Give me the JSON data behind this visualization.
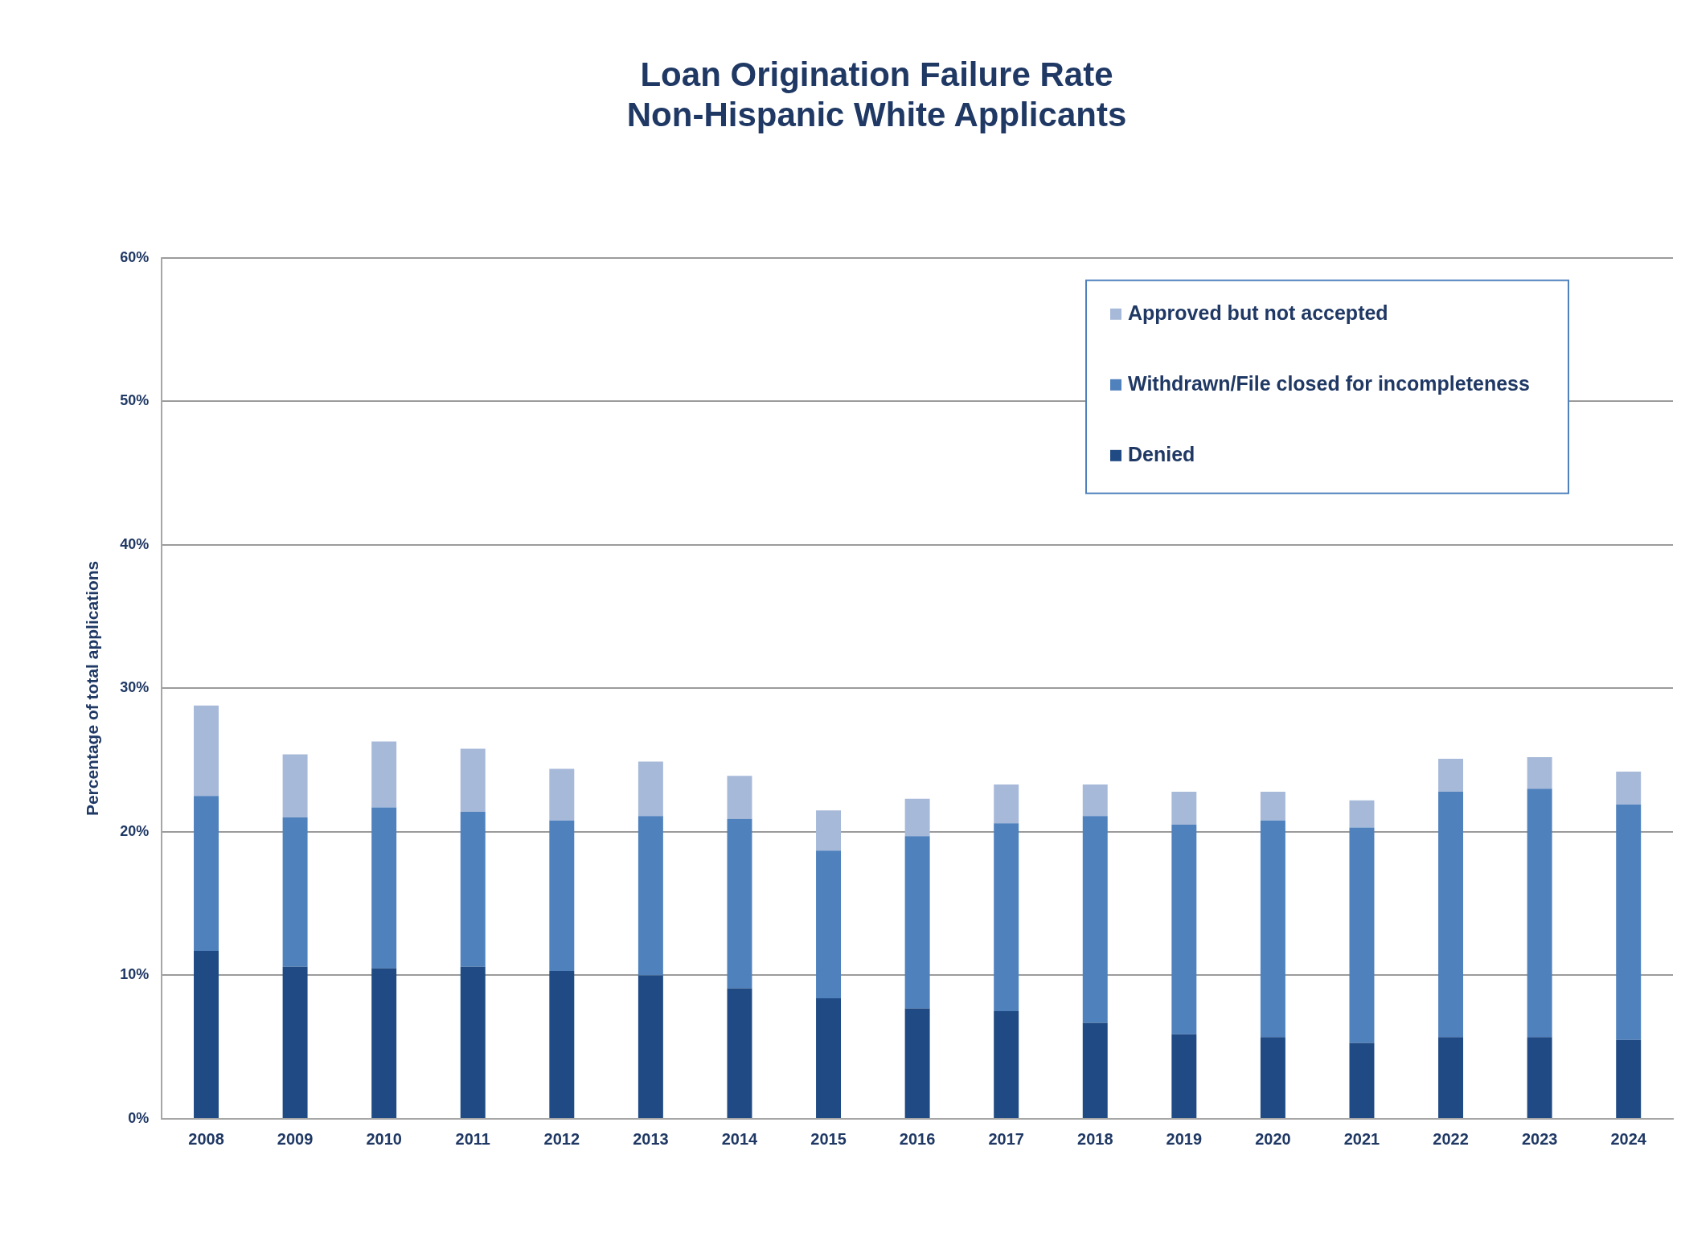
{
  "chart_data": {
    "type": "bar",
    "stacked": true,
    "title": "Loan Origination Failure Rate\nNon-Hispanic White Applicants",
    "ylabel": "Percentage of total applications",
    "categories": [
      "2008",
      "2009",
      "2010",
      "2011",
      "2012",
      "2013",
      "2014",
      "2015",
      "2016",
      "2017",
      "2018",
      "2019",
      "2020",
      "2021",
      "2022",
      "2023",
      "2024"
    ],
    "series": [
      {
        "name": "Denied",
        "color": "#1f4a84",
        "values": [
          11.7,
          10.6,
          10.5,
          10.6,
          10.3,
          10.0,
          9.1,
          8.4,
          7.7,
          7.5,
          6.7,
          5.9,
          5.7,
          5.3,
          5.7,
          5.7,
          5.5
        ]
      },
      {
        "name": "Withdrawn/File closed for incompleteness",
        "color": "#4f81bd",
        "values": [
          10.8,
          10.4,
          11.2,
          10.8,
          10.5,
          11.1,
          11.8,
          10.3,
          12.0,
          13.1,
          14.4,
          14.6,
          15.1,
          15.0,
          17.1,
          17.3,
          16.4
        ]
      },
      {
        "name": "Approved but not accepted",
        "color": "#a7b9d9",
        "values": [
          6.3,
          4.4,
          4.6,
          4.4,
          3.6,
          3.8,
          3.0,
          2.8,
          2.6,
          2.7,
          2.2,
          2.3,
          2.0,
          1.9,
          2.3,
          2.2,
          2.3
        ]
      }
    ],
    "ylim": [
      0,
      60
    ],
    "yticks": [
      {
        "value": 0,
        "label": "0%"
      },
      {
        "value": 10,
        "label": "10%"
      },
      {
        "value": 20,
        "label": "20%"
      },
      {
        "value": 30,
        "label": "30%"
      },
      {
        "value": 40,
        "label": "40%"
      },
      {
        "value": 50,
        "label": "50%"
      },
      {
        "value": 60,
        "label": "60%"
      }
    ],
    "grid": "y",
    "legend": "top right"
  }
}
